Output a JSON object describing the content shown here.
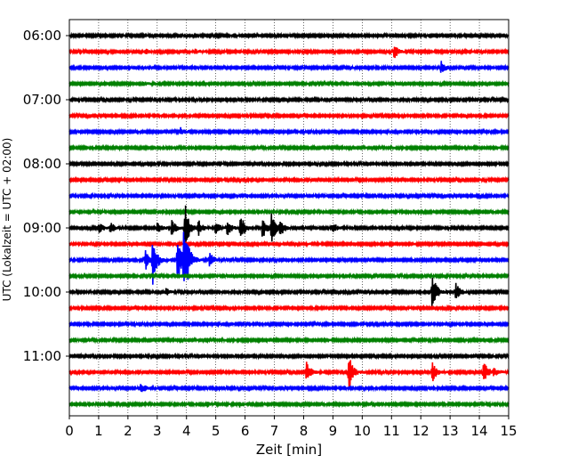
{
  "chart_data": {
    "type": "line",
    "subtype": "helicorder",
    "title": "",
    "xlabel": "Zeit  [min]",
    "ylabel": "UTC (Lokalzeit = UTC + 02:00)",
    "xlim": [
      0,
      15
    ],
    "x_ticks": [
      "0",
      "1",
      "2",
      "3",
      "4",
      "5",
      "6",
      "7",
      "8",
      "9",
      "10",
      "11",
      "12",
      "13",
      "14",
      "15"
    ],
    "grid": "vertical dotted at each minute",
    "legend": "none",
    "trace_interval_min": 15,
    "trace_colors": [
      "#000000",
      "#ff0000",
      "#0000ff",
      "#008000"
    ],
    "hour_labels": [
      "06:00",
      "07:00",
      "08:00",
      "09:00",
      "10:00",
      "11:00"
    ],
    "trace_count": 24,
    "events": [
      {
        "trace": 0,
        "t_min": 4.0,
        "amp": 0.0
      },
      {
        "trace": 1,
        "t_min": 2.6,
        "amp": 0.12
      },
      {
        "trace": 1,
        "t_min": 4.3,
        "amp": 0.12
      },
      {
        "trace": 1,
        "t_min": 11.1,
        "amp": 0.35
      },
      {
        "trace": 2,
        "t_min": 12.7,
        "amp": 0.3
      },
      {
        "trace": 3,
        "t_min": 2.5,
        "amp": 0.1
      },
      {
        "trace": 6,
        "t_min": 3.8,
        "amp": 0.2
      },
      {
        "trace": 12,
        "t_min": 1.0,
        "amp": 0.3
      },
      {
        "trace": 12,
        "t_min": 1.4,
        "amp": 0.3
      },
      {
        "trace": 12,
        "t_min": 3.0,
        "amp": 0.3
      },
      {
        "trace": 12,
        "t_min": 3.5,
        "amp": 0.4
      },
      {
        "trace": 12,
        "t_min": 3.95,
        "amp": 1.3
      },
      {
        "trace": 12,
        "t_min": 4.4,
        "amp": 0.4
      },
      {
        "trace": 12,
        "t_min": 5.0,
        "amp": 0.3
      },
      {
        "trace": 12,
        "t_min": 5.4,
        "amp": 0.35
      },
      {
        "trace": 12,
        "t_min": 5.85,
        "amp": 0.7
      },
      {
        "trace": 12,
        "t_min": 6.6,
        "amp": 0.6
      },
      {
        "trace": 12,
        "t_min": 6.9,
        "amp": 0.8
      },
      {
        "trace": 12,
        "t_min": 7.2,
        "amp": 0.4
      },
      {
        "trace": 12,
        "t_min": 9.0,
        "amp": 0.25
      },
      {
        "trace": 14,
        "t_min": 2.6,
        "amp": 0.5
      },
      {
        "trace": 14,
        "t_min": 2.85,
        "amp": 1.4
      },
      {
        "trace": 14,
        "t_min": 3.7,
        "amp": 1.2
      },
      {
        "trace": 14,
        "t_min": 3.9,
        "amp": 1.4
      },
      {
        "trace": 14,
        "t_min": 4.0,
        "amp": 0.8
      },
      {
        "trace": 14,
        "t_min": 4.8,
        "amp": 0.4
      },
      {
        "trace": 16,
        "t_min": 3.3,
        "amp": 0.2
      },
      {
        "trace": 16,
        "t_min": 12.4,
        "amp": 1.0
      },
      {
        "trace": 16,
        "t_min": 13.2,
        "amp": 0.45
      },
      {
        "trace": 21,
        "t_min": 8.1,
        "amp": 0.5
      },
      {
        "trace": 21,
        "t_min": 9.55,
        "amp": 0.9
      },
      {
        "trace": 21,
        "t_min": 12.4,
        "amp": 0.5
      },
      {
        "trace": 21,
        "t_min": 14.15,
        "amp": 0.6
      },
      {
        "trace": 21,
        "t_min": 14.5,
        "amp": 0.2
      },
      {
        "trace": 22,
        "t_min": 2.45,
        "amp": 0.3
      },
      {
        "trace": 23,
        "t_min": 4.7,
        "amp": 0.15
      },
      {
        "trace": 23,
        "t_min": 5.8,
        "amp": 0.15
      }
    ]
  }
}
